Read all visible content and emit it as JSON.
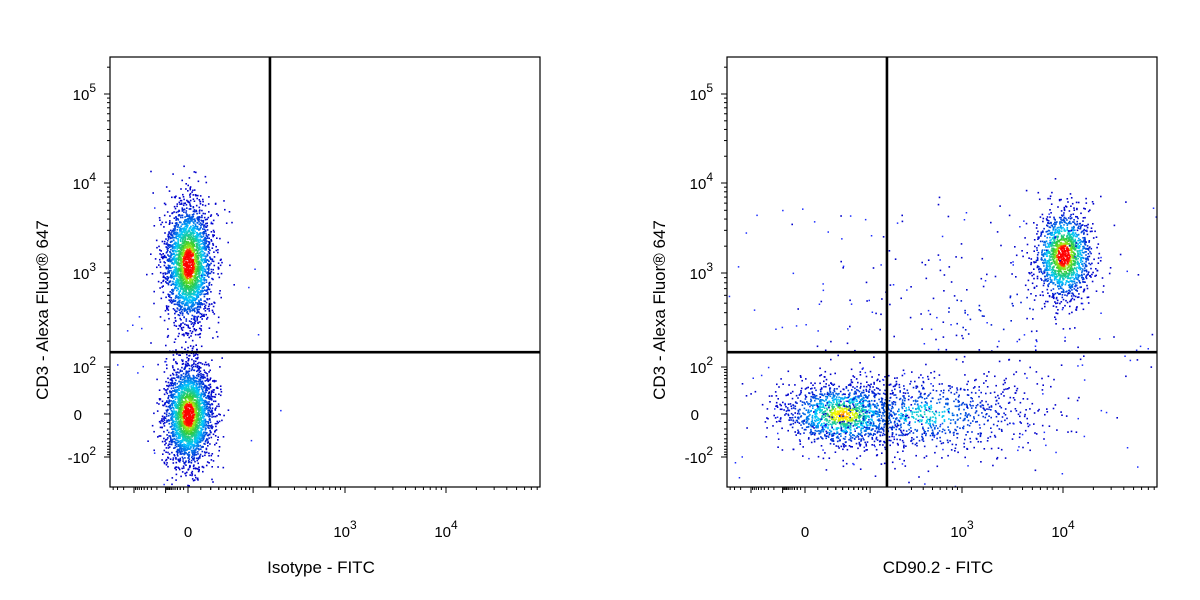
{
  "chart_data": [
    {
      "type": "scatter",
      "subtype": "flow-cytometry-pseudocolor-density",
      "xlabel": "Isotype - FITC",
      "ylabel": "CD3 - Alexa Fluor® 647",
      "x_scale": "biexponential",
      "y_scale": "biexponential",
      "x_tick_labels": [
        "0",
        "10^3",
        "10^4"
      ],
      "y_tick_labels": [
        "-10^2",
        "0",
        "10^2",
        "10^3",
        "10^4",
        "10^5"
      ],
      "x_gate": 160,
      "y_gate": 150,
      "populations": [
        {
          "label": "CD3+ cluster",
          "x_center": 0,
          "y_center": 1300,
          "relative_count": 1.0
        },
        {
          "label": "CD3- cluster",
          "x_center": 0,
          "y_center": 0,
          "relative_count": 1.0
        }
      ],
      "color_scale": [
        "#0000cc",
        "#00c8ff",
        "#33cc33",
        "#ffff00",
        "#ff0000"
      ],
      "grid": false,
      "legend": "none"
    },
    {
      "type": "scatter",
      "subtype": "flow-cytometry-pseudocolor-density",
      "xlabel": "CD90.2 - FITC",
      "ylabel": "CD3 - Alexa Fluor® 647",
      "x_scale": "biexponential",
      "y_scale": "biexponential",
      "x_tick_labels": [
        "0",
        "10^3",
        "10^4"
      ],
      "y_tick_labels": [
        "-10^2",
        "0",
        "10^2",
        "10^3",
        "10^4",
        "10^5"
      ],
      "x_gate": 160,
      "y_gate": 150,
      "populations": [
        {
          "label": "CD90.2+ CD3+ cluster",
          "x_center": 10000,
          "y_center": 1500,
          "relative_count": 1.0
        },
        {
          "label": "CD90.2- CD3- cluster",
          "x_center": 50,
          "y_center": 0,
          "relative_count": 0.9
        },
        {
          "label": "CD90.2 dim CD3- cluster",
          "x_center": 300,
          "y_center": 0,
          "relative_count": 0.5
        }
      ],
      "color_scale": [
        "#0000cc",
        "#00c8ff",
        "#33cc33",
        "#ffff00",
        "#ff0000"
      ],
      "grid": false,
      "legend": "none"
    }
  ]
}
